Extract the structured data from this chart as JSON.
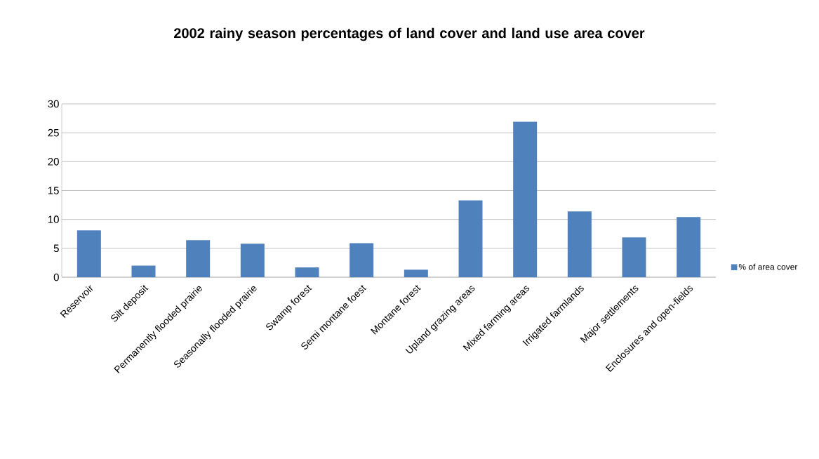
{
  "chart_data": {
    "type": "bar",
    "title": "2002 rainy season percentages of land cover and land use area cover",
    "categories": [
      "Reservoir",
      "Silt deposit",
      "Permanently flooded prairie",
      "Seasonally flooded prairie",
      "Swamp forest",
      "Semi montane foest",
      "Montane forest",
      "Upland grazing areas",
      "Mixed farming areas",
      "Irrigated farmlands",
      "Major settlements",
      "Enclosures and open-fields"
    ],
    "series": [
      {
        "name": "% of area cover",
        "color": "#4f81bd",
        "values": [
          8.1,
          2.0,
          6.4,
          5.8,
          1.7,
          5.9,
          1.3,
          13.3,
          26.9,
          11.4,
          6.9,
          10.4
        ]
      }
    ],
    "ylim": [
      0,
      30
    ],
    "yticks": [
      0,
      5,
      10,
      15,
      20,
      25,
      30
    ],
    "grid": "y",
    "legend": "right"
  }
}
